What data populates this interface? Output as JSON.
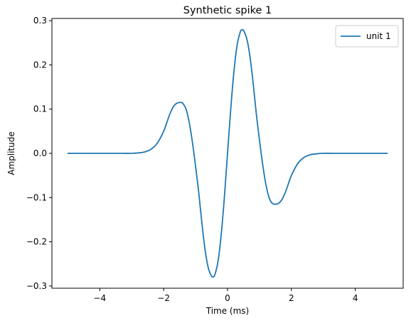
{
  "chart_data": {
    "type": "line",
    "title": "Synthetic spike 1",
    "xlabel": "Time (ms)",
    "ylabel": "Amplitude",
    "xlim": [
      -5.5,
      5.5
    ],
    "ylim": [
      -0.305,
      0.305
    ],
    "xticks": [
      {
        "value": -4,
        "label": "−4"
      },
      {
        "value": -2,
        "label": "−2"
      },
      {
        "value": 0,
        "label": "0"
      },
      {
        "value": 2,
        "label": "2"
      },
      {
        "value": 4,
        "label": "4"
      }
    ],
    "yticks": [
      {
        "value": -0.3,
        "label": "−0.3"
      },
      {
        "value": -0.2,
        "label": "−0.2"
      },
      {
        "value": -0.1,
        "label": "−0.1"
      },
      {
        "value": 0.0,
        "label": "0.0"
      },
      {
        "value": 0.1,
        "label": "0.1"
      },
      {
        "value": 0.2,
        "label": "0.2"
      },
      {
        "value": 0.3,
        "label": "0.3"
      }
    ],
    "grid": false,
    "legend": {
      "position": "top-right"
    },
    "series": [
      {
        "name": "unit 1",
        "color": "#1f77b4",
        "x": [
          -5.0,
          -4.5,
          -4.0,
          -3.5,
          -3.0,
          -2.8,
          -2.6,
          -2.4,
          -2.2,
          -2.0,
          -1.9,
          -1.8,
          -1.7,
          -1.6,
          -1.5,
          -1.45,
          -1.4,
          -1.3,
          -1.2,
          -1.1,
          -1.0,
          -0.9,
          -0.8,
          -0.7,
          -0.6,
          -0.5,
          -0.45,
          -0.4,
          -0.3,
          -0.2,
          -0.1,
          0.0,
          0.1,
          0.2,
          0.3,
          0.4,
          0.45,
          0.5,
          0.6,
          0.7,
          0.8,
          0.9,
          1.0,
          1.1,
          1.2,
          1.3,
          1.4,
          1.5,
          1.6,
          1.7,
          1.8,
          1.9,
          2.0,
          2.2,
          2.4,
          2.6,
          2.8,
          3.0,
          3.5,
          4.0,
          4.5,
          5.0
        ],
        "y": [
          0.0,
          0.0,
          0.0,
          0.0,
          0.0,
          0.001,
          0.003,
          0.009,
          0.023,
          0.05,
          0.07,
          0.09,
          0.105,
          0.113,
          0.115,
          0.115,
          0.113,
          0.1,
          0.07,
          0.025,
          -0.03,
          -0.09,
          -0.16,
          -0.22,
          -0.26,
          -0.278,
          -0.279,
          -0.275,
          -0.245,
          -0.185,
          -0.1,
          0.0,
          0.1,
          0.185,
          0.245,
          0.275,
          0.279,
          0.278,
          0.26,
          0.22,
          0.16,
          0.09,
          0.03,
          -0.025,
          -0.07,
          -0.1,
          -0.113,
          -0.115,
          -0.113,
          -0.105,
          -0.09,
          -0.07,
          -0.05,
          -0.023,
          -0.009,
          -0.003,
          -0.001,
          0.0,
          0.0,
          0.0,
          0.0,
          0.0
        ]
      }
    ]
  }
}
